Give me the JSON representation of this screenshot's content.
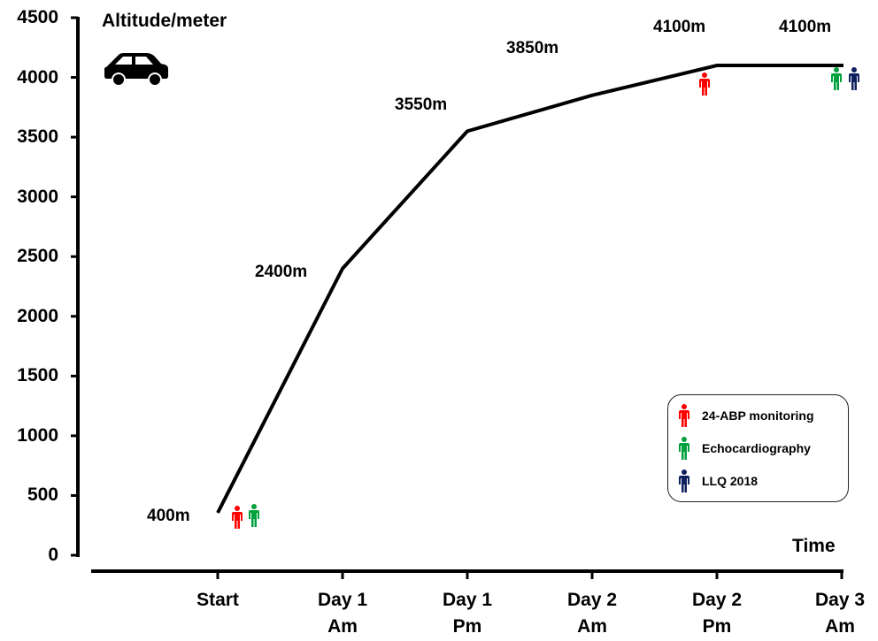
{
  "chart_data": {
    "type": "line",
    "title": "",
    "ylabel": "Altitude/meter",
    "xlabel": "Time",
    "ylim": [
      0,
      4500
    ],
    "yticks": [
      0,
      500,
      1000,
      1500,
      2000,
      2500,
      3000,
      3500,
      4000,
      4500
    ],
    "categories": [
      "Start",
      "Day 1 Am",
      "Day 1 Pm",
      "Day 2 Am",
      "Day 2 Pm",
      "Day 3 Am"
    ],
    "category_lines": [
      [
        "Start"
      ],
      [
        "Day 1",
        "Am"
      ],
      [
        "Day 1",
        "Pm"
      ],
      [
        "Day 2",
        "Am"
      ],
      [
        "Day 2",
        "Pm"
      ],
      [
        "Day 3",
        "Am"
      ]
    ],
    "series": [
      {
        "name": "Altitude",
        "color": "#000000",
        "points": [
          {
            "x": "Start",
            "y": 400,
            "label": "400m"
          },
          {
            "x": "Day 1 Am",
            "y": 2400,
            "label": "2400m"
          },
          {
            "x": "Day 1 Pm",
            "y": 3550,
            "label": "3550m"
          },
          {
            "x": "Day 2 Am",
            "y": 3850,
            "label": "3850m"
          },
          {
            "x": "Day 2 Pm",
            "y": 4100,
            "label": "4100m"
          },
          {
            "x": "Day 3 Am",
            "y": 4100,
            "label": "4100m"
          }
        ]
      }
    ],
    "markers": [
      {
        "at": "Start",
        "types": [
          "24-ABP monitoring",
          "Echocardiography"
        ]
      },
      {
        "at": "Day 2 Pm",
        "types": [
          "24-ABP monitoring"
        ]
      },
      {
        "at": "Day 3 Am",
        "types": [
          "Echocardiography",
          "LLQ 2018"
        ]
      }
    ],
    "legend": {
      "position": "lower right",
      "entries": [
        {
          "label": "24-ABP monitoring",
          "color": "#ff0000",
          "icon": "person-icon"
        },
        {
          "label": "Echocardiography",
          "color": "#00a03c",
          "icon": "person-icon"
        },
        {
          "label": "LLQ 2018",
          "color": "#0d1f5c",
          "icon": "person-icon"
        }
      ]
    },
    "transport_icon": "car-icon",
    "grid": false
  }
}
